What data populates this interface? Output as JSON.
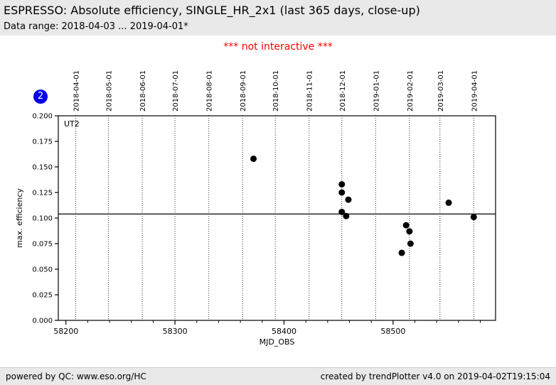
{
  "header": {
    "title": "ESPRESSO: Absolute efficiency, SINGLE_HR_2x1 (last 365 days, close-up)",
    "subtitle": "Data range: 2018-04-03 ... 2019-04-01*"
  },
  "notice": {
    "text": "*** not interactive ***",
    "color": "#ff0000"
  },
  "badge": {
    "label": "2",
    "bg": "#0000ee",
    "fg": "#ffffff"
  },
  "footer": {
    "left": "powered by QC: www.eso.org/HC",
    "right": "created by trendPlotter v4.0 on 2019-04-02T19:15:04"
  },
  "chart_data": {
    "type": "scatter",
    "inset_label": "UT2",
    "xlabel": "MJD_OBS",
    "ylabel": "max. efficiency",
    "xlim": [
      58193,
      58594
    ],
    "ylim": [
      0.0,
      0.2
    ],
    "x_major_ticks": [
      58200,
      58300,
      58400,
      58500
    ],
    "x_minor_tick_step": 20,
    "y_ticks": [
      0.0,
      0.025,
      0.05,
      0.075,
      0.1,
      0.125,
      0.15,
      0.175,
      0.2
    ],
    "y_tick_decimals": 3,
    "grid": {
      "vertical_dotted": true,
      "legend": "none"
    },
    "top_axis_months": [
      {
        "label": "2018-04-01",
        "mjd": 58209
      },
      {
        "label": "2018-05-01",
        "mjd": 58239
      },
      {
        "label": "2018-06-01",
        "mjd": 58270
      },
      {
        "label": "2018-07-01",
        "mjd": 58300
      },
      {
        "label": "2018-08-01",
        "mjd": 58331
      },
      {
        "label": "2018-09-01",
        "mjd": 58362
      },
      {
        "label": "2018-10-01",
        "mjd": 58392
      },
      {
        "label": "2018-11-01",
        "mjd": 58423
      },
      {
        "label": "2018-12-01",
        "mjd": 58453
      },
      {
        "label": "2019-01-01",
        "mjd": 58484
      },
      {
        "label": "2019-02-01",
        "mjd": 58515
      },
      {
        "label": "2019-03-01",
        "mjd": 58543
      },
      {
        "label": "2019-04-01",
        "mjd": 58574
      }
    ],
    "reference_line": 0.104,
    "marker": {
      "color": "#000000",
      "radius": 4.5
    },
    "points": [
      {
        "mjd": 58372,
        "value": 0.158
      },
      {
        "mjd": 58453,
        "value": 0.133
      },
      {
        "mjd": 58453,
        "value": 0.125
      },
      {
        "mjd": 58459,
        "value": 0.118
      },
      {
        "mjd": 58453,
        "value": 0.106
      },
      {
        "mjd": 58457,
        "value": 0.102
      },
      {
        "mjd": 58512,
        "value": 0.093
      },
      {
        "mjd": 58515,
        "value": 0.087
      },
      {
        "mjd": 58516,
        "value": 0.075
      },
      {
        "mjd": 58508,
        "value": 0.066
      },
      {
        "mjd": 58551,
        "value": 0.115
      },
      {
        "mjd": 58574,
        "value": 0.101
      }
    ]
  }
}
